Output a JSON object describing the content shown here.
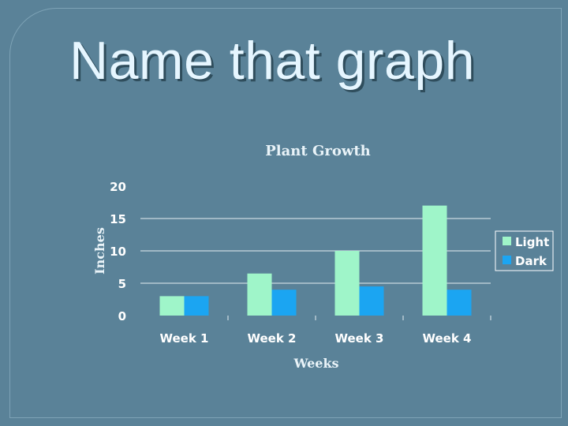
{
  "slide": {
    "title": "Name that graph"
  },
  "colors": {
    "background": "#5a8298",
    "gridline": "#e6eef2",
    "light_bar": "#9ff5c9",
    "dark_bar": "#1ba5f2",
    "text": "#ffffff"
  },
  "chart_data": {
    "type": "bar",
    "title": "Plant Growth",
    "xlabel": "Weeks",
    "ylabel": "Inches",
    "categories": [
      "Week 1",
      "Week 2",
      "Week 3",
      "Week 4"
    ],
    "series": [
      {
        "name": "Light",
        "values": [
          3,
          6.5,
          10,
          17
        ]
      },
      {
        "name": "Dark",
        "values": [
          3,
          4,
          4.5,
          4
        ]
      }
    ],
    "ylim": [
      0,
      20
    ],
    "yticks": [
      0,
      5,
      10,
      15,
      20
    ],
    "grid": true,
    "legend": "right"
  }
}
